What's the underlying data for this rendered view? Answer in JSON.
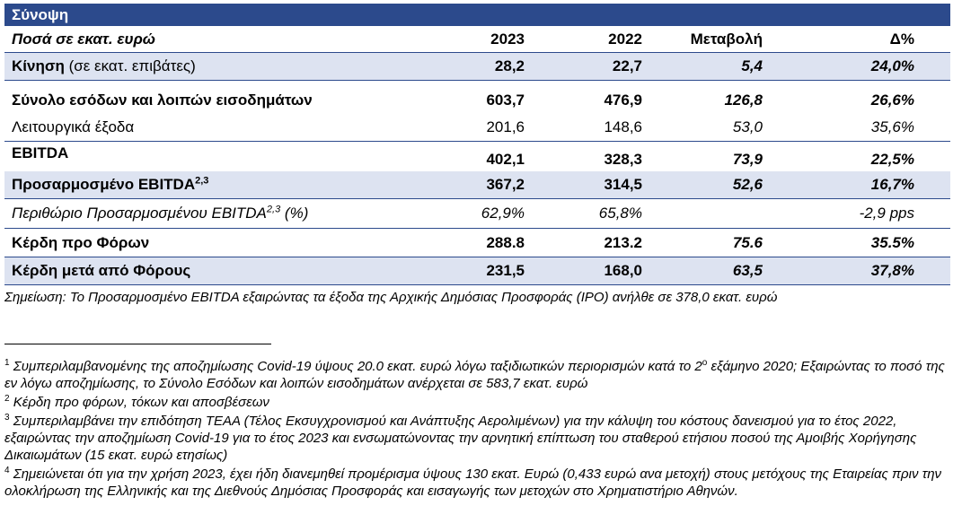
{
  "title": "Σύνοψη",
  "header": {
    "label": "Ποσά σε εκατ. ευρώ",
    "col1": "2023",
    "col2": "2022",
    "col3": "Μεταβολή",
    "col4": "Δ%"
  },
  "rows": [
    {
      "label": "Κίνηση",
      "note": "(σε εκατ. επιβάτες)",
      "v2023": "28,2",
      "v2022": "22,7",
      "change": "5,4",
      "pct": "24,0%"
    },
    {
      "label": "Σύνολο εσόδων και λοιπών εισοδημάτων",
      "v2023": "603,7",
      "v2022": "476,9",
      "change": "126,8",
      "pct": "26,6%"
    },
    {
      "label": "Λειτουργικά έξοδα",
      "v2023": "201,6",
      "v2022": "148,6",
      "change": "53,0",
      "pct": "35,6%"
    },
    {
      "label": "EBITDA",
      "v2023": "402,1",
      "v2022": "328,3",
      "change": "73,9",
      "pct": "22,5%"
    },
    {
      "label": "Προσαρμοσμένο EBITDA",
      "sup": "2,3",
      "v2023": "367,2",
      "v2022": "314,5",
      "change": "52,6",
      "pct": "16,7%"
    },
    {
      "label": "Περιθώριο Προσαρμοσμένου EBITDA",
      "sup": "2,3",
      "suffix": " (%)",
      "v2023": "62,9%",
      "v2022": "65,8%",
      "change": "",
      "pct": "-2,9 pps"
    },
    {
      "label": "Κέρδη προ Φόρων",
      "v2023": "288.8",
      "v2022": "213.2",
      "change": "75.6",
      "pct": "35.5%"
    },
    {
      "label": "Κέρδη μετά από Φόρους",
      "v2023": "231,5",
      "v2022": "168,0",
      "change": "63,5",
      "pct": "37,8%"
    }
  ],
  "note": "Σημείωση: Το Προσαρμοσμένο EBITDA εξαιρώντας τα έξοδα της Αρχικής Δημόσιας Προσφοράς (IPO) ανήλθε σε 378,0 εκατ. ευρώ",
  "footnotes": [
    {
      "num": "1",
      "text_before": "Συμπεριλαμβανομένης της αποζημίωσης Covid-19 ύψους 20.0 εκατ. ευρώ λόγω ταξιδιωτικών περιορισμών κατά το 2",
      "ord": "ο",
      "text_after": " εξάμηνο 2020; Εξαιρώντας το ποσό της εν λόγω αποζημίωσης, το Σύνολο Εσόδων και λοιπών εισοδημάτων ανέρχεται σε 583,7 εκατ. ευρώ"
    },
    {
      "num": "2",
      "text": "Κέρδη προ φόρων, τόκων και αποσβέσεων"
    },
    {
      "num": "3",
      "text": "Συμπεριλαμβάνει την επιδότηση ΤΕΑΑ (Τέλος Εκσυγχρονισμού και Ανάπτυξης Αερολιμένων) για την κάλυψη του κόστους δανεισμού για το έτος 2022, εξαιρώντας την αποζημίωση Covid-19 για το έτος 2023 και ενσωματώνοντας την αρνητική επίπτωση του σταθερού ετήσιου ποσού της Αμοιβής Χορήγησης Δικαιωμάτων (15 εκατ. ευρώ ετησίως)"
    },
    {
      "num": "4",
      "text": "Σημειώνεται ότι για την χρήση 2023, έχει ήδη διανεμηθεί προμέρισμα ύψους 130 εκατ. Ευρώ (0,433 ευρώ ανα μετοχή) στους μετόχους της Εταιρείας πριν την ολοκλήρωση της Ελληνικής και της Διεθνούς Δημόσιας Προσφοράς και εισαγωγής των μετοχών στο Χρηματιστήριο Αθηνών."
    }
  ]
}
